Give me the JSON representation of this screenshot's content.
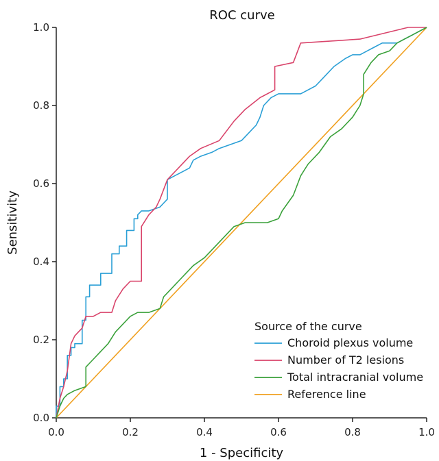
{
  "chart_data": {
    "type": "line",
    "title": "ROC curve",
    "xlabel": "1 - Specificity",
    "ylabel": "Sensitivity",
    "xlim": [
      0,
      1
    ],
    "ylim": [
      0,
      1
    ],
    "x_ticks": [
      "0.0",
      "0.2",
      "0.4",
      "0.6",
      "0.8",
      "1.0"
    ],
    "y_ticks": [
      "0.0",
      "0.2",
      "0.4",
      "0.6",
      "0.8",
      "1.0"
    ],
    "grid": false,
    "legend": {
      "title": "Source of the curve",
      "position": "bottom-right"
    },
    "series": [
      {
        "name": "Choroid plexus volume",
        "color": "#2a9fd6",
        "x": [
          0,
          0,
          0.01,
          0.01,
          0.02,
          0.02,
          0.03,
          0.03,
          0.04,
          0.04,
          0.05,
          0.05,
          0.07,
          0.07,
          0.08,
          0.08,
          0.09,
          0.09,
          0.12,
          0.12,
          0.15,
          0.15,
          0.17,
          0.17,
          0.19,
          0.19,
          0.21,
          0.21,
          0.22,
          0.22,
          0.23,
          0.25,
          0.28,
          0.29,
          0.3,
          0.3,
          0.32,
          0.34,
          0.36,
          0.37,
          0.39,
          0.42,
          0.44,
          0.47,
          0.5,
          0.52,
          0.54,
          0.55,
          0.56,
          0.58,
          0.6,
          0.66,
          0.7,
          0.73,
          0.75,
          0.78,
          0.8,
          0.82,
          0.84,
          0.86,
          0.88,
          0.9,
          0.92,
          0.94,
          0.96,
          0.98,
          1.0
        ],
        "y": [
          0,
          0.03,
          0.03,
          0.08,
          0.08,
          0.1,
          0.1,
          0.16,
          0.16,
          0.18,
          0.18,
          0.19,
          0.19,
          0.25,
          0.25,
          0.31,
          0.31,
          0.34,
          0.34,
          0.37,
          0.37,
          0.42,
          0.42,
          0.44,
          0.44,
          0.48,
          0.48,
          0.51,
          0.51,
          0.52,
          0.53,
          0.53,
          0.54,
          0.55,
          0.56,
          0.61,
          0.62,
          0.63,
          0.64,
          0.66,
          0.67,
          0.68,
          0.69,
          0.7,
          0.71,
          0.73,
          0.75,
          0.77,
          0.8,
          0.82,
          0.83,
          0.83,
          0.85,
          0.88,
          0.9,
          0.92,
          0.93,
          0.93,
          0.94,
          0.95,
          0.96,
          0.96,
          0.96,
          0.97,
          0.98,
          0.99,
          1.0
        ]
      },
      {
        "name": "Number of T2 lesions",
        "color": "#d9446b",
        "x": [
          0,
          0.01,
          0.02,
          0.03,
          0.04,
          0.05,
          0.06,
          0.07,
          0.08,
          0.1,
          0.12,
          0.15,
          0.16,
          0.18,
          0.2,
          0.23,
          0.23,
          0.25,
          0.27,
          0.28,
          0.3,
          0.33,
          0.36,
          0.39,
          0.44,
          0.48,
          0.51,
          0.55,
          0.59,
          0.59,
          0.64,
          0.66,
          0.82,
          0.95,
          1.0
        ],
        "y": [
          0,
          0.05,
          0.08,
          0.12,
          0.19,
          0.21,
          0.22,
          0.23,
          0.26,
          0.26,
          0.27,
          0.27,
          0.3,
          0.33,
          0.35,
          0.35,
          0.49,
          0.52,
          0.54,
          0.56,
          0.61,
          0.64,
          0.67,
          0.69,
          0.71,
          0.76,
          0.79,
          0.82,
          0.84,
          0.9,
          0.91,
          0.96,
          0.97,
          1.0,
          1.0
        ]
      },
      {
        "name": "Total intracranial volume",
        "color": "#3aa13a",
        "x": [
          0,
          0.01,
          0.02,
          0.03,
          0.05,
          0.08,
          0.08,
          0.1,
          0.12,
          0.14,
          0.16,
          0.18,
          0.19,
          0.2,
          0.22,
          0.25,
          0.28,
          0.29,
          0.31,
          0.33,
          0.35,
          0.37,
          0.4,
          0.42,
          0.45,
          0.48,
          0.51,
          0.54,
          0.57,
          0.6,
          0.61,
          0.64,
          0.66,
          0.68,
          0.71,
          0.74,
          0.77,
          0.8,
          0.82,
          0.83,
          0.83,
          0.85,
          0.87,
          0.9,
          0.92,
          0.94,
          0.96,
          0.98,
          1.0
        ],
        "y": [
          0,
          0.03,
          0.05,
          0.06,
          0.07,
          0.08,
          0.13,
          0.15,
          0.17,
          0.19,
          0.22,
          0.24,
          0.25,
          0.26,
          0.27,
          0.27,
          0.28,
          0.31,
          0.33,
          0.35,
          0.37,
          0.39,
          0.41,
          0.43,
          0.46,
          0.49,
          0.5,
          0.5,
          0.5,
          0.51,
          0.53,
          0.57,
          0.62,
          0.65,
          0.68,
          0.72,
          0.74,
          0.77,
          0.8,
          0.83,
          0.88,
          0.91,
          0.93,
          0.94,
          0.96,
          0.97,
          0.98,
          0.99,
          1.0
        ]
      },
      {
        "name": "Reference line",
        "color": "#f0a020",
        "x": [
          0,
          1
        ],
        "y": [
          0,
          1
        ]
      }
    ]
  }
}
